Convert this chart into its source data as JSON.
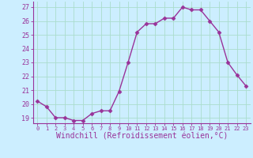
{
  "x": [
    0,
    1,
    2,
    3,
    4,
    5,
    6,
    7,
    8,
    9,
    10,
    11,
    12,
    13,
    14,
    15,
    16,
    17,
    18,
    19,
    20,
    21,
    22,
    23
  ],
  "y": [
    20.2,
    19.8,
    19.0,
    19.0,
    18.8,
    18.8,
    19.3,
    19.5,
    19.5,
    20.9,
    23.0,
    25.2,
    25.8,
    25.8,
    26.2,
    26.2,
    27.0,
    26.8,
    26.8,
    26.0,
    25.2,
    23.0,
    22.1,
    21.3
  ],
  "line_color": "#993399",
  "marker": "D",
  "markersize": 2.5,
  "linewidth": 1.0,
  "xlabel": "Windchill (Refroidissement éolien,°C)",
  "xlabel_fontsize": 7,
  "bg_color": "#cceeff",
  "grid_color": "#aaddcc",
  "ytick_labels": [
    "19",
    "20",
    "21",
    "22",
    "23",
    "24",
    "25",
    "26",
    "27"
  ],
  "yticks": [
    19,
    20,
    21,
    22,
    23,
    24,
    25,
    26,
    27
  ],
  "xticks": [
    0,
    1,
    2,
    3,
    4,
    5,
    6,
    7,
    8,
    9,
    10,
    11,
    12,
    13,
    14,
    15,
    16,
    17,
    18,
    19,
    20,
    21,
    22,
    23
  ],
  "ylim": [
    18.6,
    27.4
  ],
  "xlim": [
    -0.5,
    23.5
  ],
  "tick_color": "#993399",
  "label_color": "#993399"
}
